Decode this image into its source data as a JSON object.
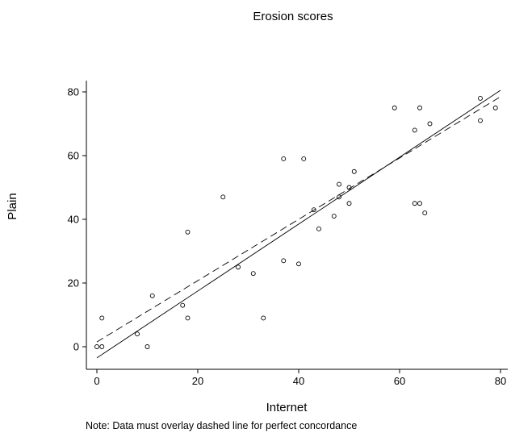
{
  "chart_data": {
    "type": "scatter",
    "title": "Erosion scores",
    "xlabel": "Internet",
    "ylabel": "Plain",
    "xlim": [
      -3,
      81
    ],
    "ylim": [
      -7,
      84
    ],
    "xticks": [
      0,
      20,
      40,
      60,
      80
    ],
    "yticks": [
      0,
      20,
      40,
      60,
      80
    ],
    "grid": false,
    "legend": "none",
    "note": "Note: Data must overlay dashed line for perfect concordance",
    "points": [
      {
        "x": 0,
        "y": 0
      },
      {
        "x": 1,
        "y": 0
      },
      {
        "x": 1,
        "y": 9
      },
      {
        "x": 8,
        "y": 4
      },
      {
        "x": 10,
        "y": 0
      },
      {
        "x": 11,
        "y": 16
      },
      {
        "x": 17,
        "y": 13
      },
      {
        "x": 18,
        "y": 9
      },
      {
        "x": 18,
        "y": 36
      },
      {
        "x": 25,
        "y": 47
      },
      {
        "x": 28,
        "y": 25
      },
      {
        "x": 31,
        "y": 23
      },
      {
        "x": 33,
        "y": 9
      },
      {
        "x": 37,
        "y": 27
      },
      {
        "x": 37,
        "y": 59
      },
      {
        "x": 40,
        "y": 26
      },
      {
        "x": 41,
        "y": 59
      },
      {
        "x": 43,
        "y": 43
      },
      {
        "x": 44,
        "y": 37
      },
      {
        "x": 47,
        "y": 41
      },
      {
        "x": 48,
        "y": 47
      },
      {
        "x": 48,
        "y": 51
      },
      {
        "x": 50,
        "y": 45
      },
      {
        "x": 50,
        "y": 50
      },
      {
        "x": 51,
        "y": 55
      },
      {
        "x": 59,
        "y": 75
      },
      {
        "x": 63,
        "y": 45
      },
      {
        "x": 63,
        "y": 68
      },
      {
        "x": 64,
        "y": 45
      },
      {
        "x": 64,
        "y": 75
      },
      {
        "x": 65,
        "y": 42
      },
      {
        "x": 66,
        "y": 70
      },
      {
        "x": 76,
        "y": 78
      },
      {
        "x": 76,
        "y": 71
      },
      {
        "x": 79,
        "y": 75
      }
    ],
    "fit_line": {
      "style": "solid",
      "x": [
        0,
        80
      ],
      "y": [
        -3.5,
        80.5
      ]
    },
    "concordance_line": {
      "style": "dashed",
      "x": [
        0,
        80
      ],
      "y": [
        1.5,
        78.5
      ]
    }
  }
}
